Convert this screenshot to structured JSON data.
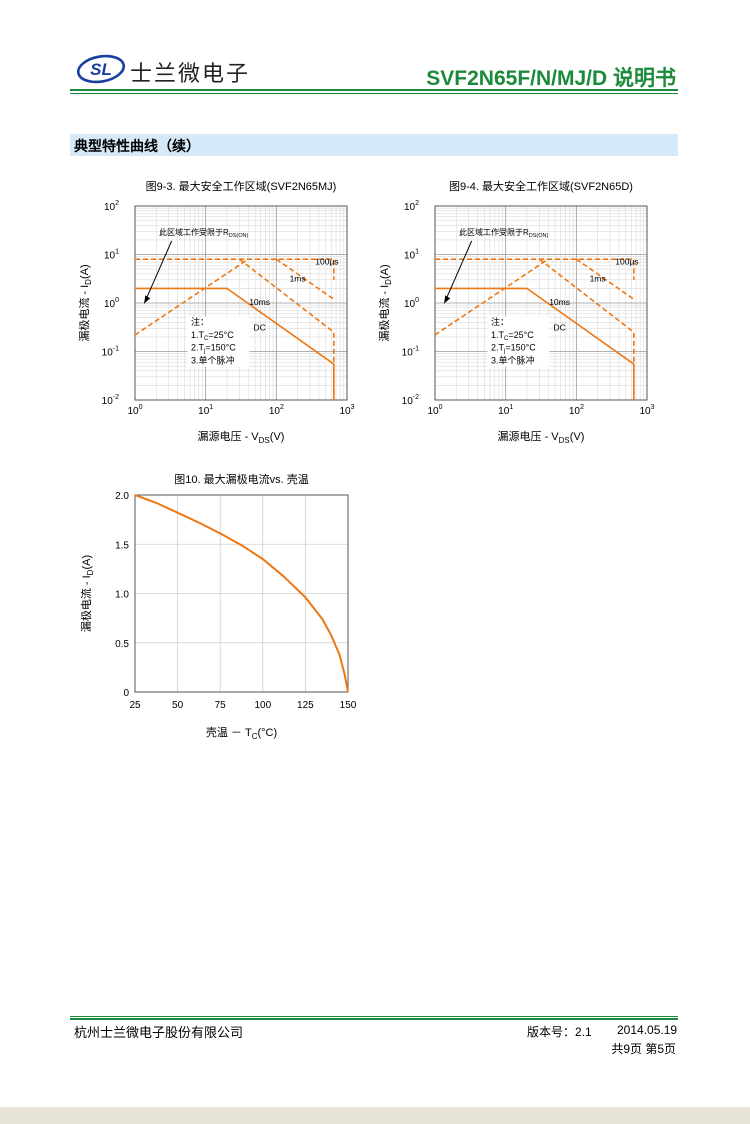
{
  "header": {
    "logo_text": "SL",
    "company": "士兰微电子",
    "doc_title": "SVF2N65F/N/MJ/D 说明书"
  },
  "section_title": "典型特性曲线（续）",
  "colors": {
    "brand_green": "#1b8a3a",
    "curve_orange": "#ee7711",
    "section_bar": "#d6e9f8"
  },
  "chart_data": [
    {
      "type": "line",
      "title": "图9-3. 最大安全工作区域(SVF2N65MJ)",
      "xlabel_prefix": "漏源电压 - V",
      "xlabel_sub": "DS",
      "xlabel_suffix": "(V)",
      "ylabel_prefix": "漏极电流 - I",
      "ylabel_sub": "D",
      "ylabel_suffix": "(A)",
      "xscale": "log",
      "yscale": "log",
      "xlim": [
        1,
        1000
      ],
      "ylim": [
        0.01,
        100
      ],
      "xticks": [
        {
          "b": "10",
          "e": "0"
        },
        {
          "b": "10",
          "e": "1"
        },
        {
          "b": "10",
          "e": "2"
        },
        {
          "b": "10",
          "e": "3"
        }
      ],
      "yticks": [
        {
          "b": "10",
          "e": "2"
        },
        {
          "b": "10",
          "e": "1"
        },
        {
          "b": "10",
          "e": "0"
        },
        {
          "b": "10",
          "e": "-1"
        },
        {
          "b": "10",
          "e": "-2"
        }
      ],
      "grid": true,
      "annotation": {
        "main": "此区域工作受限于R",
        "sub": "DS(ON)"
      },
      "series": [
        {
          "name": "DC",
          "style": "solid",
          "points": [
            [
              1,
              2
            ],
            [
              20,
              2
            ],
            [
              650,
              0.055
            ],
            [
              650,
              0.01
            ]
          ]
        },
        {
          "name": "10ms",
          "style": "dashed",
          "points": [
            [
              30,
              8
            ],
            [
              650,
              0.25
            ],
            [
              650,
              0.01
            ]
          ]
        },
        {
          "name": "1ms",
          "style": "dashed",
          "points": [
            [
              100,
              8
            ],
            [
              650,
              1.2
            ]
          ]
        },
        {
          "name": "100μs",
          "style": "dashed",
          "points": [
            [
              1,
              8
            ],
            [
              650,
              8
            ],
            [
              650,
              3
            ]
          ]
        },
        {
          "name": "",
          "style": "dashed",
          "points": [
            [
              1,
              0.22
            ],
            [
              40,
              8
            ]
          ]
        }
      ],
      "notes": {
        "title": "注：",
        "l1_pre": "1.T",
        "l1_sub": "C",
        "l1_post": "=25°C",
        "l2_pre": "2.T",
        "l2_sub": "j",
        "l2_post": "=150°C",
        "l3": "3.单个脉冲"
      }
    },
    {
      "type": "line",
      "title": "图9-4. 最大安全工作区域(SVF2N65D)",
      "xlabel_prefix": "漏源电压 - V",
      "xlabel_sub": "DS",
      "xlabel_suffix": "(V)",
      "ylabel_prefix": "漏极电流 - I",
      "ylabel_sub": "D",
      "ylabel_suffix": "(A)",
      "xscale": "log",
      "yscale": "log",
      "xlim": [
        1,
        1000
      ],
      "ylim": [
        0.01,
        100
      ],
      "xticks": [
        {
          "b": "10",
          "e": "0"
        },
        {
          "b": "10",
          "e": "1"
        },
        {
          "b": "10",
          "e": "2"
        },
        {
          "b": "10",
          "e": "3"
        }
      ],
      "yticks": [
        {
          "b": "10",
          "e": "2"
        },
        {
          "b": "10",
          "e": "1"
        },
        {
          "b": "10",
          "e": "0"
        },
        {
          "b": "10",
          "e": "-1"
        },
        {
          "b": "10",
          "e": "-2"
        }
      ],
      "grid": true,
      "annotation": {
        "main": "此区域工作受限于R",
        "sub": "DS(ON)"
      },
      "series": [
        {
          "name": "DC",
          "style": "solid",
          "points": [
            [
              1,
              2
            ],
            [
              20,
              2
            ],
            [
              650,
              0.055
            ],
            [
              650,
              0.01
            ]
          ]
        },
        {
          "name": "10ms",
          "style": "dashed",
          "points": [
            [
              30,
              8
            ],
            [
              650,
              0.25
            ],
            [
              650,
              0.01
            ]
          ]
        },
        {
          "name": "1ms",
          "style": "dashed",
          "points": [
            [
              100,
              8
            ],
            [
              650,
              1.2
            ]
          ]
        },
        {
          "name": "100μs",
          "style": "dashed",
          "points": [
            [
              1,
              8
            ],
            [
              650,
              8
            ],
            [
              650,
              3
            ]
          ]
        },
        {
          "name": "",
          "style": "dashed",
          "points": [
            [
              1,
              0.22
            ],
            [
              40,
              8
            ]
          ]
        }
      ],
      "notes": {
        "title": "注：",
        "l1_pre": "1.T",
        "l1_sub": "C",
        "l1_post": "=25°C",
        "l2_pre": "2.T",
        "l2_sub": "j",
        "l2_post": "=150°C",
        "l3": "3.单个脉冲"
      }
    },
    {
      "type": "line",
      "title": "图10. 最大漏极电流vs. 壳温",
      "xlabel_prefix": "壳温 － T",
      "xlabel_sub": "C",
      "xlabel_suffix": "(°C)",
      "ylabel_prefix": "漏极电流 - I",
      "ylabel_sub": "D",
      "ylabel_suffix": "(A)",
      "xscale": "linear",
      "yscale": "linear",
      "xlim": [
        25,
        150
      ],
      "ylim": [
        0,
        2.0
      ],
      "xticks": [
        "25",
        "50",
        "75",
        "100",
        "125",
        "150"
      ],
      "yticks": [
        "2.0",
        "1.5",
        "1.0",
        "0.5",
        "0"
      ],
      "grid": true,
      "series": [
        {
          "name": "",
          "style": "solid",
          "points": [
            [
              25,
              2.0
            ],
            [
              37.5,
              1.92
            ],
            [
              50,
              1.82
            ],
            [
              62.5,
              1.72
            ],
            [
              75,
              1.61
            ],
            [
              87.5,
              1.49
            ],
            [
              100,
              1.35
            ],
            [
              112.5,
              1.17
            ],
            [
              125,
              0.96
            ],
            [
              135,
              0.74
            ],
            [
              140,
              0.58
            ],
            [
              145,
              0.38
            ],
            [
              148,
              0.18
            ],
            [
              150,
              0
            ]
          ]
        }
      ]
    }
  ],
  "footer": {
    "company": "杭州士兰微电子股份有限公司",
    "version": "版本号：2.1",
    "date": "2014.05.19",
    "pages": "共9页 第5页"
  }
}
